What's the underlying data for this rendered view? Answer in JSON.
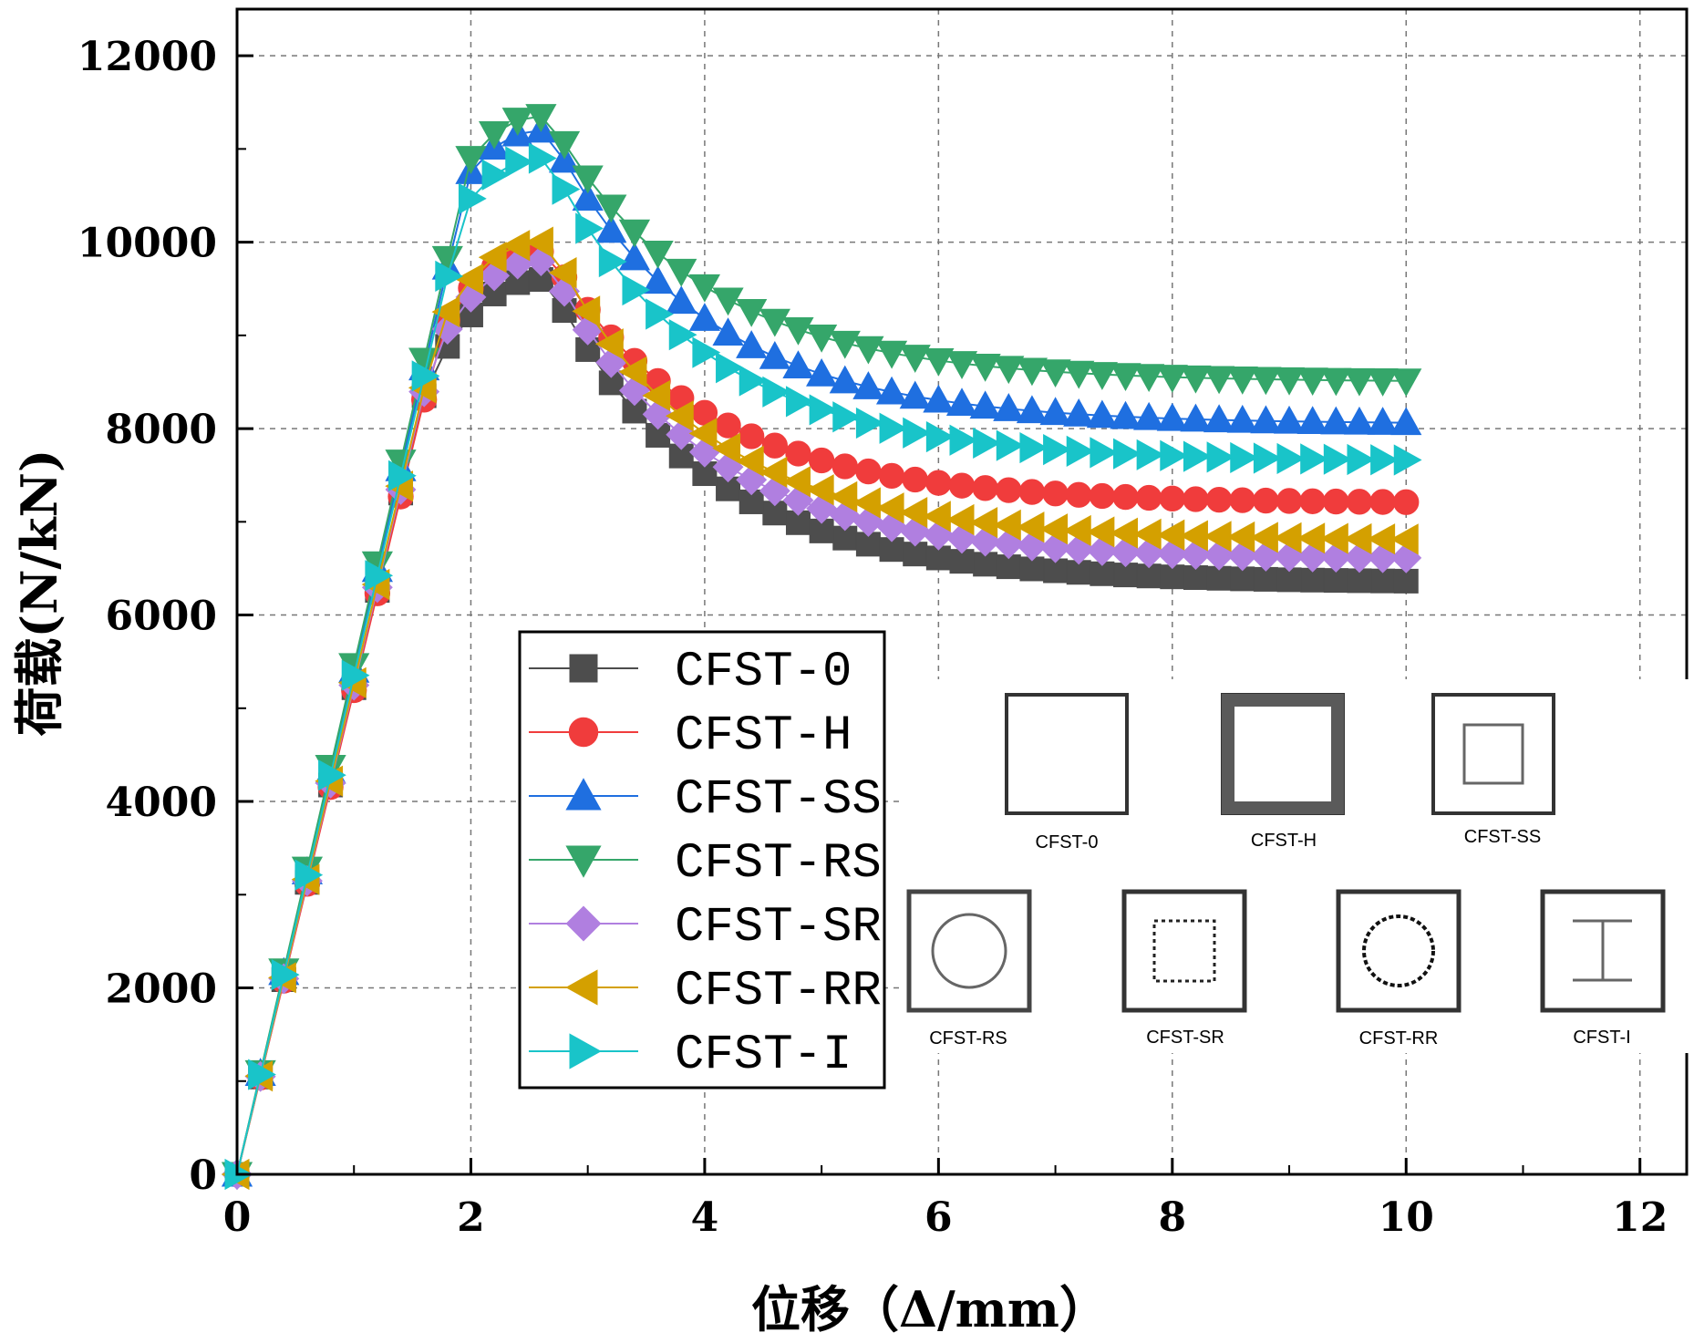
{
  "chart_data": {
    "type": "line",
    "xlabel": "位移（Δ/mm）",
    "ylabel": "荷载(N/kN)",
    "xlim": [
      0,
      12.4
    ],
    "ylim": [
      0,
      12500
    ],
    "x_ticks": [
      "0",
      "2",
      "4",
      "6",
      "8",
      "10",
      "12"
    ],
    "y_ticks": [
      "0",
      "2000",
      "4000",
      "6000",
      "8000",
      "10000",
      "12000"
    ],
    "grid": true,
    "legend_position": "lower-middle",
    "series": [
      {
        "name": "CFST-0",
        "color": "#4d4d4d",
        "marker": "square",
        "peak_x": 2.6,
        "peak_y": 9600,
        "end_y": 6350,
        "elastic_factor": 0.985
      },
      {
        "name": "CFST-H",
        "color": "#f03c3c",
        "marker": "circle",
        "peak_x": 2.6,
        "peak_y": 9900,
        "end_y": 7200,
        "elastic_factor": 0.98
      },
      {
        "name": "CFST-SS",
        "color": "#1f6fe0",
        "marker": "triangle-up",
        "peak_x": 2.6,
        "peak_y": 11200,
        "end_y": 8050,
        "elastic_factor": 1.02
      },
      {
        "name": "CFST-RS",
        "color": "#35a66a",
        "marker": "triangle-down",
        "peak_x": 2.6,
        "peak_y": 11350,
        "end_y": 8500,
        "elastic_factor": 1.03
      },
      {
        "name": "CFST-SR",
        "color": "#b07fe0",
        "marker": "diamond",
        "peak_x": 2.6,
        "peak_y": 9800,
        "end_y": 6600,
        "elastic_factor": 0.99
      },
      {
        "name": "CFST-RR",
        "color": "#d4a000",
        "marker": "triangle-left",
        "peak_x": 2.6,
        "peak_y": 10000,
        "end_y": 6800,
        "elastic_factor": 0.995
      },
      {
        "name": "CFST-I",
        "color": "#19c4c9",
        "marker": "triangle-right",
        "peak_x": 2.6,
        "peak_y": 10900,
        "end_y": 7650,
        "elastic_factor": 1.01
      }
    ],
    "x_step": 0.2,
    "x_max": 10.0
  },
  "sections": [
    {
      "id": "0",
      "label": "CFST-0"
    },
    {
      "id": "H",
      "label": "CFST-H"
    },
    {
      "id": "SS",
      "label": "CFST-SS"
    },
    {
      "id": "RS",
      "label": "CFST-RS"
    },
    {
      "id": "SR",
      "label": "CFST-SR"
    },
    {
      "id": "RR",
      "label": "CFST-RR"
    },
    {
      "id": "I",
      "label": "CFST-I"
    }
  ]
}
